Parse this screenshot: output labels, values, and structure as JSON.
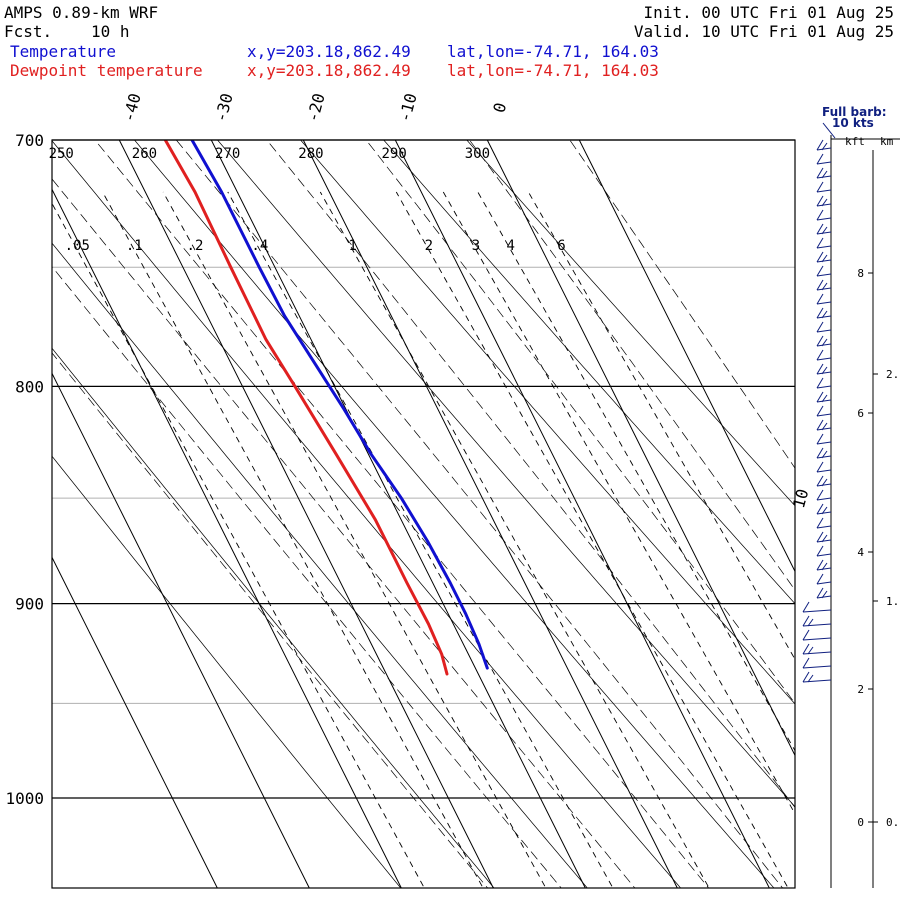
{
  "header": {
    "model": "AMPS 0.89-km WRF",
    "forecast_label": "Fcst.",
    "forecast_hours": "10 h",
    "init": "Init. 00 UTC Fri 01 Aug 25",
    "valid": "Valid. 10 UTC Fri 01 Aug 25",
    "legend": [
      {
        "label": "Temperature",
        "xy": "x,y=203.18,862.49",
        "latlon": "lat,lon=-74.71, 164.03",
        "color": "#1010d0"
      },
      {
        "label": "Dewpoint temperature",
        "xy": "x,y=203.18,862.49",
        "latlon": "lat,lon=-74.71, 164.03",
        "color": "#e02020"
      }
    ]
  },
  "wind_panel": {
    "barb_note_1": "Full barb:",
    "barb_note_2": "10 kts",
    "kft_label": "kft",
    "km_label": "km",
    "kft_ticks": [
      "8",
      "6",
      "4",
      "2",
      "0"
    ],
    "km_ticks": [
      "2.",
      "1.",
      "0."
    ]
  },
  "chart_data": {
    "type": "line",
    "diagram": "skew-T log-P",
    "y_axis": {
      "label": "",
      "scale": "log",
      "ticks": [
        700,
        800,
        900,
        1000
      ],
      "range": [
        1040,
        700
      ]
    },
    "isotherms_deg_c": [
      -70,
      -60,
      -50,
      -40,
      -30,
      -20,
      -10,
      0,
      10
    ],
    "dry_adiabat_theta_k": [
      220,
      230,
      240,
      250,
      260,
      270,
      280,
      290,
      300
    ],
    "mixing_ratio_g_per_kg": [
      ".05",
      ".1",
      ".2",
      ".4",
      "1",
      "2",
      "3",
      "4",
      "6"
    ],
    "series": [
      {
        "name": "Temperature",
        "color": "#1010d0",
        "points": [
          {
            "p": 700,
            "t": -32.1
          },
          {
            "p": 720,
            "t": -31.7
          },
          {
            "p": 750,
            "t": -31.7
          },
          {
            "p": 770,
            "t": -31.6
          },
          {
            "p": 790,
            "t": -30.9
          },
          {
            "p": 810,
            "t": -30.2
          },
          {
            "p": 830,
            "t": -29.7
          },
          {
            "p": 850,
            "t": -28.8
          },
          {
            "p": 870,
            "t": -28.3
          },
          {
            "p": 890,
            "t": -28.1
          },
          {
            "p": 905,
            "t": -28.1
          },
          {
            "p": 920,
            "t": -28.3
          },
          {
            "p": 932,
            "t": -28.7
          }
        ]
      },
      {
        "name": "Dewpoint temperature",
        "color": "#e02020",
        "points": [
          {
            "p": 700,
            "t": -35.0
          },
          {
            "p": 720,
            "t": -34.6
          },
          {
            "p": 750,
            "t": -34.8
          },
          {
            "p": 780,
            "t": -34.9
          },
          {
            "p": 800,
            "t": -34.3
          },
          {
            "p": 830,
            "t": -33.5
          },
          {
            "p": 860,
            "t": -32.8
          },
          {
            "p": 890,
            "t": -32.8
          },
          {
            "p": 910,
            "t": -32.7
          },
          {
            "p": 925,
            "t": -32.9
          },
          {
            "p": 935,
            "t": -33.4
          }
        ]
      }
    ]
  },
  "colors": {
    "temperature": "#1010d0",
    "dewpoint": "#e02020",
    "wind_barbs": "#102080",
    "frame": "#000000",
    "grid": "#b0b0b0"
  }
}
